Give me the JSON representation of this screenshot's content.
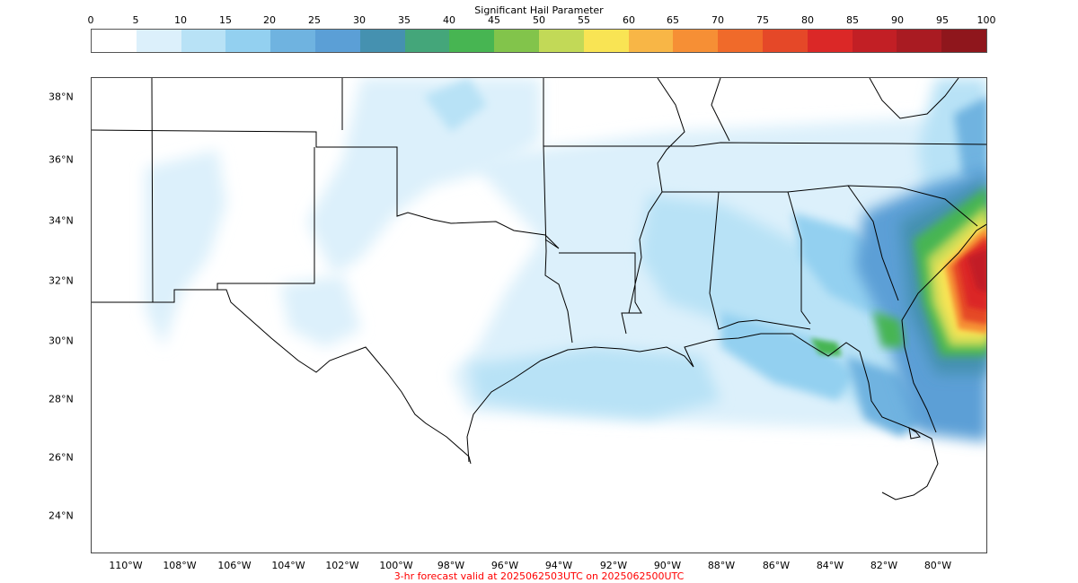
{
  "colorbar": {
    "title": "Significant Hail Parameter",
    "ticks": [
      "0",
      "5",
      "10",
      "15",
      "20",
      "25",
      "30",
      "35",
      "40",
      "45",
      "50",
      "55",
      "60",
      "65",
      "70",
      "75",
      "80",
      "85",
      "90",
      "95",
      "100"
    ],
    "colors": [
      "#ffffff",
      "#dcf0fb",
      "#b8e2f6",
      "#93d0f0",
      "#6fb3e0",
      "#5b9fd6",
      "#4591b0",
      "#44a67a",
      "#47b552",
      "#82c44b",
      "#c2d957",
      "#f9e454",
      "#f8b646",
      "#f68f35",
      "#f06a2a",
      "#e54828",
      "#db2827",
      "#c21f25",
      "#a91b22",
      "#8f161c"
    ]
  },
  "map": {
    "lat_labels": [
      "38°N",
      "36°N",
      "34°N",
      "32°N",
      "30°N",
      "28°N",
      "26°N",
      "24°N"
    ],
    "lon_labels": [
      "110°W",
      "108°W",
      "106°W",
      "104°W",
      "102°W",
      "100°W",
      "98°W",
      "96°W",
      "94°W",
      "92°W",
      "90°W",
      "88°W",
      "86°W",
      "84°W",
      "82°W",
      "80°W"
    ],
    "high_value_region": "southeast-atlantic-coast"
  },
  "footer": {
    "text": "3-hr forecast valid at 2025062503UTC on 2025062500UTC",
    "color": "#ff0000"
  }
}
